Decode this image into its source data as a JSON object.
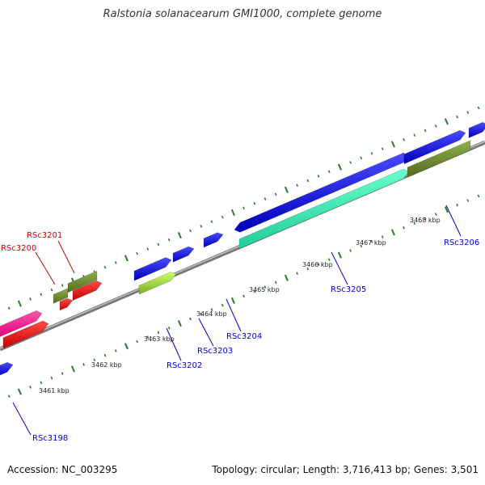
{
  "title": "Ralstonia solanacearum GMI1000, complete genome",
  "footer": {
    "accession": "Accession: NC_003295",
    "summary": "Topology: circular; Length: 3,716,413 bp; Genes: 3,501"
  },
  "scale_labels": [
    "3461 kbp",
    "3462 kbp",
    "3463 kbp",
    "3464 kbp",
    "3465 kbp",
    "3466 kbp",
    "3467 kbp",
    "3468 kbp"
  ],
  "gene_labels": [
    {
      "name": "RSc3198",
      "color": "#0000cc"
    },
    {
      "name": "RSc3200",
      "color": "#cc0000"
    },
    {
      "name": "RSc3201",
      "color": "#cc0000"
    },
    {
      "name": "RSc3202",
      "color": "#0000cc"
    },
    {
      "name": "RSc3203",
      "color": "#0000cc"
    },
    {
      "name": "RSc3204",
      "color": "#0000cc"
    },
    {
      "name": "RSc3205",
      "color": "#0000cc"
    },
    {
      "name": "RSc3206",
      "color": "#0000cc"
    }
  ],
  "colors": {
    "backbone": "#8a8a8a",
    "tick": "#2a7a2a",
    "strand_forward": "#1414e6",
    "strand_reverse": "#ee1010",
    "cds_teal": "#33eebb",
    "cds_olive": "#6b8e23",
    "cds_lime": "#9acd32",
    "cds_pink": "#ff1493"
  }
}
